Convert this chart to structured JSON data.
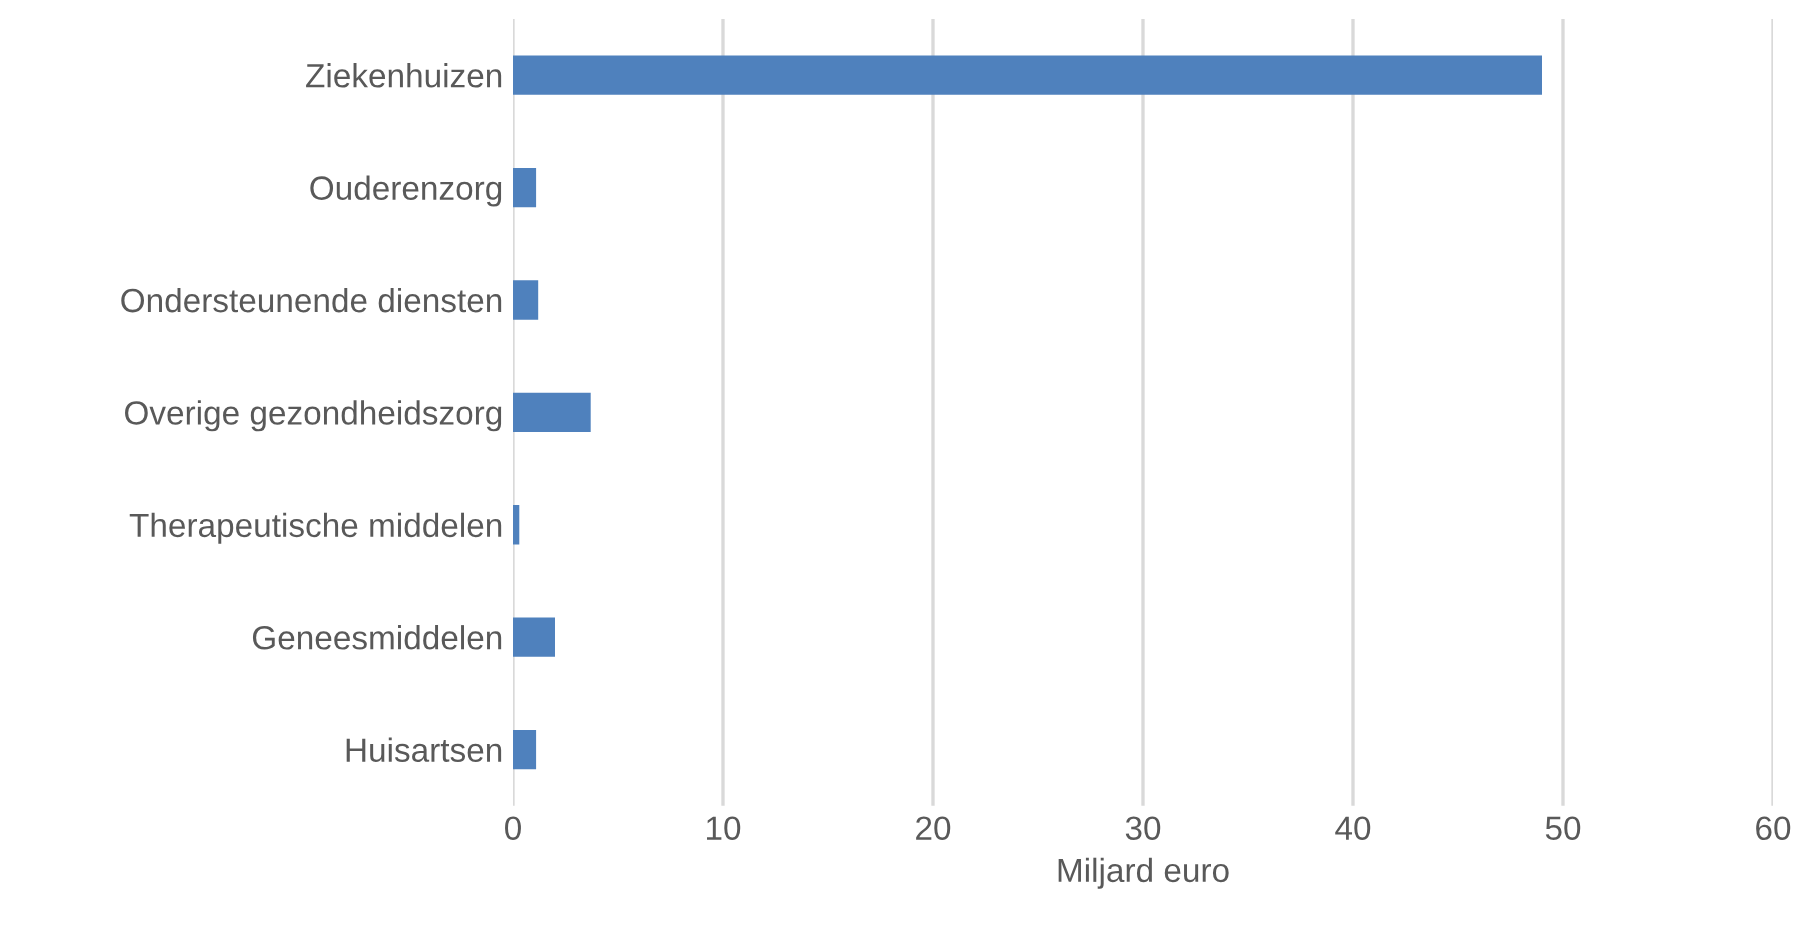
{
  "chart_data": {
    "type": "bar",
    "orientation": "horizontal",
    "xlabel": "Miljard euro",
    "categories": [
      "Ziekenhuizen",
      "Ouderenzorg",
      "Ondersteunende diensten",
      "Overige gezondheidszorg",
      "Therapeutische middelen",
      "Geneesmiddelen",
      "Huisartsen"
    ],
    "values": [
      49.0,
      1.1,
      1.2,
      3.7,
      0.3,
      2.0,
      1.1
    ],
    "color": "#4f81bd",
    "xlim": [
      0,
      60
    ],
    "xticks": [
      0,
      10,
      20,
      30,
      40,
      50,
      60
    ],
    "grid": "x"
  }
}
